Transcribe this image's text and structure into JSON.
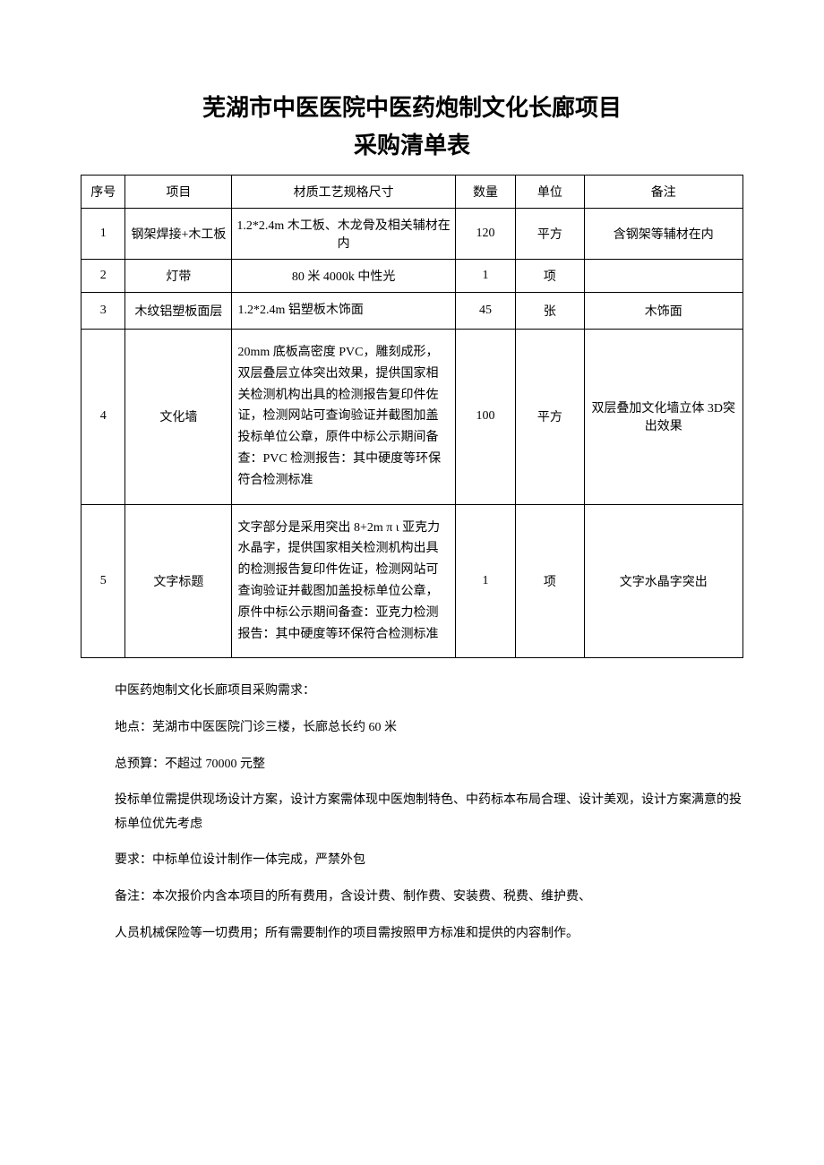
{
  "title_line1": "芜湖市中医医院中医药炮制文化长廊项目",
  "title_line2": "采购清单表",
  "headers": {
    "seq": "序号",
    "item": "项目",
    "spec": "材质工艺规格尺寸",
    "qty": "数量",
    "unit": "单位",
    "remark": "备注"
  },
  "rows": [
    {
      "seq": "1",
      "item": "钢架焊接+木工板",
      "spec": "1.2*2.4m 木工板、木龙骨及相关辅材在内",
      "qty": "120",
      "unit": "平方",
      "remark": "含钢架等辅材在内"
    },
    {
      "seq": "2",
      "item": "灯带",
      "spec": "80 米 4000k 中性光",
      "qty": "1",
      "unit": "项",
      "remark": ""
    },
    {
      "seq": "3",
      "item": "木纹铝塑板面层",
      "spec": "1.2*2.4m 铝塑板木饰面",
      "qty": "45",
      "unit": "张",
      "remark": "木饰面"
    },
    {
      "seq": "4",
      "item": "文化墙",
      "spec": "20mm 底板高密度 PVC，雕刻成形，双层叠层立体突出效果，提供国家相关检测机构出具的检测报告复印件佐证，检测网站可查询验证并截图加盖投标单位公章，原件中标公示期间备查：PVC 检测报告：其中硬度等环保符合检测标准",
      "qty": "100",
      "unit": "平方",
      "remark": "双层叠加文化墙立体 3D突出效果"
    },
    {
      "seq": "5",
      "item": "文字标题",
      "spec": "文字部分是采用突出 8+2m π ι 亚克力水晶字，提供国家相关检测机构出具的检测报告复印件佐证，检测网站可查询验证并截图加盖投标单位公章，原件中标公示期间备查：亚克力检测报告：其中硬度等环保符合检测标准",
      "qty": "1",
      "unit": "项",
      "remark": "文字水晶字突出"
    }
  ],
  "notes": [
    "中医药炮制文化长廊项目采购需求：",
    "地点：芜湖市中医医院门诊三楼，长廊总长约 60 米",
    "总预算：不超过 70000 元整",
    "投标单位需提供现场设计方案，设计方案需体现中医炮制特色、中药标本布局合理、设计美观，设计方案满意的投标单位优先考虑",
    "要求：中标单位设计制作一体完成，严禁外包",
    "备注：本次报价内含本项目的所有费用，含设计费、制作费、安装费、税费、维护费、",
    "人员机械保险等一切费用；所有需要制作的项目需按照甲方标准和提供的内容制作。"
  ],
  "colors": {
    "text": "#000000",
    "background": "#ffffff",
    "border": "#000000"
  }
}
